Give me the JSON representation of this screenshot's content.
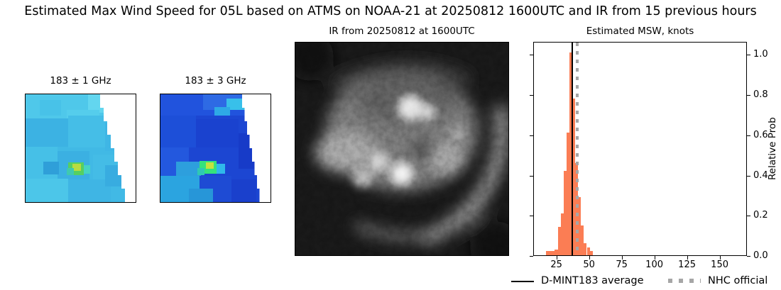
{
  "title": "Estimated Max Wind Speed for 05L based on ATMS on NOAA-21 at 20250812 1600UTC and IR from 15 previous hours",
  "panels": {
    "mw1": {
      "title": "183 ± 1 GHz"
    },
    "mw2": {
      "title": "183 ± 3 GHz"
    },
    "ir": {
      "title": "IR from 20250812 at 1600UTC"
    }
  },
  "chart_data": {
    "type": "bar",
    "title": "Estimated MSW, knots",
    "ylabel": "Relative Prob",
    "ylabel_side": "right",
    "xlabel": "",
    "xlim": [
      7.2,
      170.9
    ],
    "ylim": [
      0,
      1.065
    ],
    "xticks": [
      25,
      50,
      75,
      100,
      125,
      150
    ],
    "yticks": [
      "0.0",
      "0.2",
      "0.4",
      "0.6",
      "0.8",
      "1.0"
    ],
    "grid": false,
    "bar_color": "#fb7d54",
    "bins": [
      {
        "from": 16.5,
        "to": 23.1,
        "p": 0.02
      },
      {
        "from": 23.1,
        "to": 25.7,
        "p": 0.03
      },
      {
        "from": 25.7,
        "to": 27.9,
        "p": 0.14
      },
      {
        "from": 27.9,
        "to": 30.1,
        "p": 0.21
      },
      {
        "from": 30.1,
        "to": 32.3,
        "p": 0.42
      },
      {
        "from": 32.3,
        "to": 34.5,
        "p": 0.61
      },
      {
        "from": 34.5,
        "to": 36.7,
        "p": 1.01
      },
      {
        "from": 36.7,
        "to": 38.9,
        "p": 0.78
      },
      {
        "from": 38.9,
        "to": 41.1,
        "p": 0.46
      },
      {
        "from": 41.1,
        "to": 43.3,
        "p": 0.29
      },
      {
        "from": 43.3,
        "to": 45.5,
        "p": 0.15
      },
      {
        "from": 45.5,
        "to": 47.7,
        "p": 0.06
      },
      {
        "from": 47.7,
        "to": 49.9,
        "p": 0.04
      },
      {
        "from": 49.9,
        "to": 52.1,
        "p": 0.02
      }
    ],
    "vlines": [
      {
        "name": "D-MINT183 average",
        "x": 36.6,
        "style": "solid",
        "color": "#000000"
      },
      {
        "name": "NHC official",
        "x": 40.3,
        "style": "dotted",
        "color": "#a6a6a6"
      }
    ],
    "legend": [
      {
        "label": "D-MINT183 average",
        "style": "solid",
        "color": "#000000"
      },
      {
        "label": "NHC official",
        "style": "dotted",
        "color": "#a6a6a6"
      }
    ],
    "legend_position": "bottom"
  }
}
